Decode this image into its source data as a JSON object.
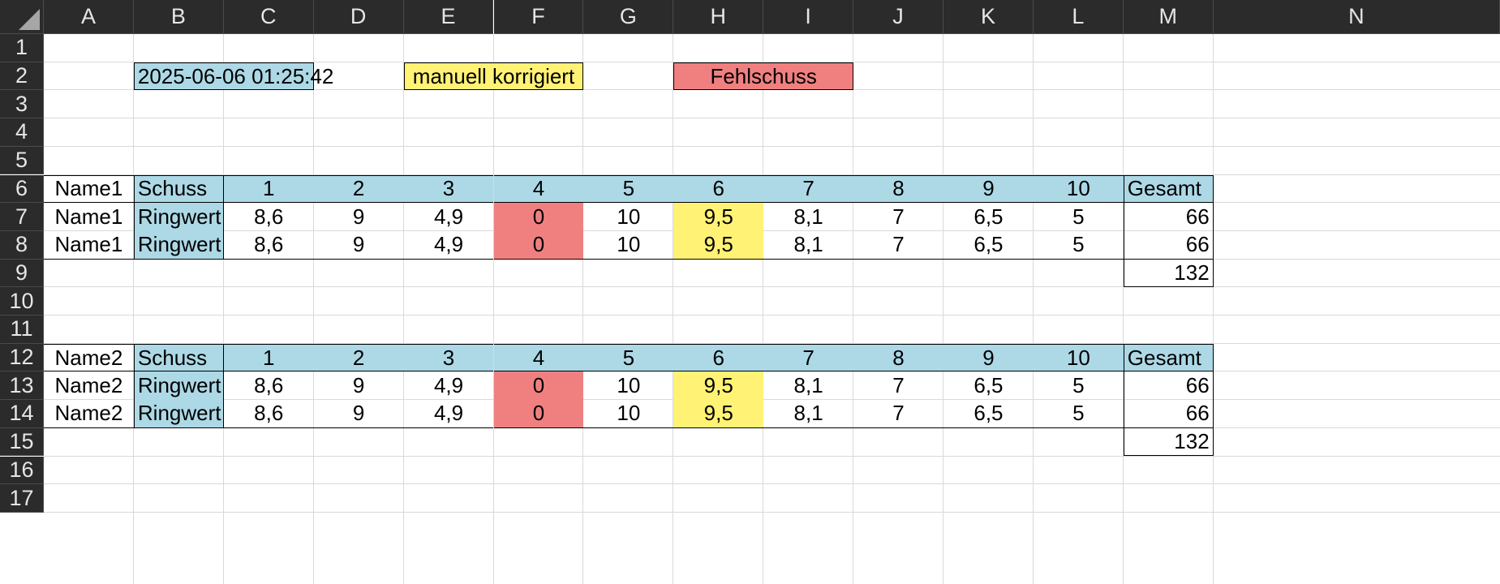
{
  "columns": [
    "A",
    "B",
    "C",
    "D",
    "E",
    "F",
    "G",
    "H",
    "I",
    "J",
    "K",
    "L",
    "M",
    "N"
  ],
  "rows": [
    "1",
    "2",
    "3",
    "4",
    "5",
    "6",
    "7",
    "8",
    "9",
    "10",
    "11",
    "12",
    "13",
    "14",
    "15",
    "16",
    "17"
  ],
  "legend": {
    "timestamp": "2025-06-06 01:25:42",
    "manual_label": "manuell korrigiert",
    "miss_label": "Fehlschuss"
  },
  "tables": [
    {
      "header": {
        "name": "Name1",
        "label": "Schuss",
        "shots": [
          "1",
          "2",
          "3",
          "4",
          "5",
          "6",
          "7",
          "8",
          "9",
          "10"
        ],
        "total_label": "Gesamt"
      },
      "rows": [
        {
          "name": "Name1",
          "label": "Ringwert",
          "values": [
            "8,6",
            "9",
            "4,9",
            "0",
            "10",
            "9,5",
            "8,1",
            "7",
            "6,5",
            "5"
          ],
          "total": "66"
        },
        {
          "name": "Name1",
          "label": "Ringwert",
          "values": [
            "8,6",
            "9",
            "4,9",
            "0",
            "10",
            "9,5",
            "8,1",
            "7",
            "6,5",
            "5"
          ],
          "total": "66"
        }
      ],
      "grand_total": "132"
    },
    {
      "header": {
        "name": "Name2",
        "label": "Schuss",
        "shots": [
          "1",
          "2",
          "3",
          "4",
          "5",
          "6",
          "7",
          "8",
          "9",
          "10"
        ],
        "total_label": "Gesamt"
      },
      "rows": [
        {
          "name": "Name2",
          "label": "Ringwert",
          "values": [
            "8,6",
            "9",
            "4,9",
            "0",
            "10",
            "9,5",
            "8,1",
            "7",
            "6,5",
            "5"
          ],
          "total": "66"
        },
        {
          "name": "Name2",
          "label": "Ringwert",
          "values": [
            "8,6",
            "9",
            "4,9",
            "0",
            "10",
            "9,5",
            "8,1",
            "7",
            "6,5",
            "5"
          ],
          "total": "66"
        }
      ],
      "grand_total": "132"
    }
  ],
  "colors": {
    "blue": "#add8e6",
    "yellow": "#fff275",
    "red": "#f08080",
    "header_bg": "#2b2b2b"
  },
  "icons": {
    "select_all": "select-all-triangle-icon"
  }
}
